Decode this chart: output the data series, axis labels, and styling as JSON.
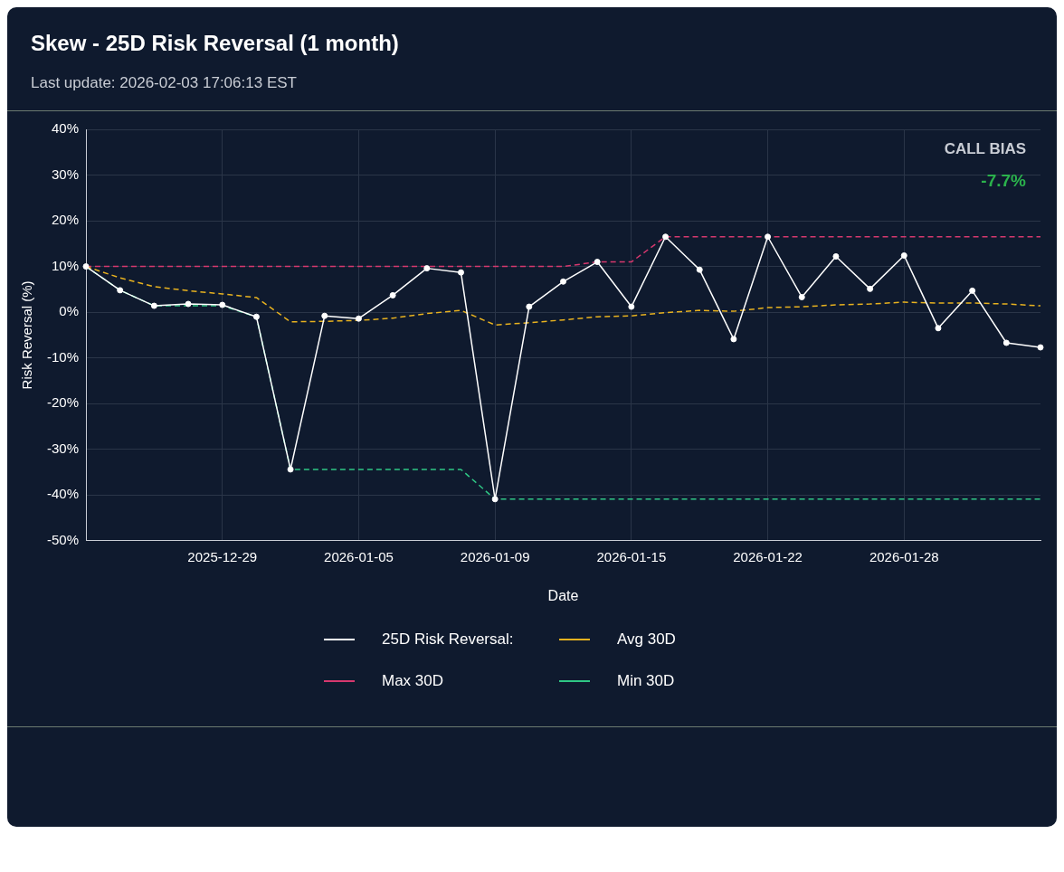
{
  "chart_data": {
    "type": "line",
    "title": "Skew - 25D Risk Reversal (1 month)",
    "subtitle": "Last update: 2026-02-03 17:06:13 EST",
    "xlabel": "Date",
    "ylabel": "Risk Reversal (%)",
    "categories": [
      null,
      null,
      null,
      null,
      "2025-12-29",
      null,
      null,
      null,
      "2026-01-05",
      null,
      null,
      null,
      "2026-01-09",
      null,
      null,
      null,
      "2026-01-15",
      null,
      null,
      null,
      "2026-01-22",
      null,
      null,
      null,
      "2026-01-28",
      null,
      null,
      null,
      null
    ],
    "series": [
      {
        "name": "25D Risk Reversal:",
        "color": "#ffffff",
        "marker": "circle",
        "line_style": "solid",
        "values": [
          10.0,
          4.8,
          1.4,
          1.8,
          1.6,
          -1.0,
          -34.4,
          -0.8,
          -1.4,
          3.7,
          9.6,
          8.7,
          -40.9,
          1.2,
          6.7,
          11.0,
          1.2,
          16.5,
          9.3,
          -5.9,
          16.5,
          3.3,
          12.2,
          5.1,
          12.4,
          -3.5,
          4.7,
          -6.7,
          -7.7
        ]
      },
      {
        "name": "Avg 30D",
        "color": "#e8b21f",
        "marker": "none",
        "line_style": "dashed",
        "values": [
          10.0,
          7.5,
          5.6,
          4.7,
          4.0,
          3.2,
          -2.1,
          -2.0,
          -1.8,
          -1.3,
          -0.3,
          0.4,
          -2.8,
          -2.3,
          -1.7,
          -1.0,
          -0.8,
          -0.1,
          0.4,
          0.2,
          1.0,
          1.2,
          1.6,
          1.8,
          2.2,
          2.0,
          2.0,
          1.8,
          1.4
        ]
      },
      {
        "name": "Max 30D",
        "color": "#d6386e",
        "marker": "none",
        "line_style": "dashed",
        "values": [
          10.0,
          10.0,
          10.0,
          10.0,
          10.0,
          10.0,
          10.0,
          10.0,
          10.0,
          10.0,
          10.0,
          10.0,
          10.0,
          10.0,
          10.0,
          11.0,
          11.0,
          16.5,
          16.5,
          16.5,
          16.5,
          16.5,
          16.5,
          16.5,
          16.5,
          16.5,
          16.5,
          16.5,
          16.5
        ]
      },
      {
        "name": "Min 30D",
        "color": "#2fc785",
        "marker": "none",
        "line_style": "dashed",
        "values": [
          10.0,
          4.8,
          1.4,
          1.4,
          1.4,
          -1.0,
          -34.4,
          -34.4,
          -34.4,
          -34.4,
          -34.4,
          -34.4,
          -40.9,
          -40.9,
          -40.9,
          -40.9,
          -40.9,
          -40.9,
          -40.9,
          -40.9,
          -40.9,
          -40.9,
          -40.9,
          -40.9,
          -40.9,
          -40.9,
          -40.9,
          -40.9,
          -40.9
        ]
      }
    ],
    "ylim": [
      -50,
      40
    ],
    "yticks": [
      {
        "value": -50,
        "label": "-50%"
      },
      {
        "value": -40,
        "label": "-40%"
      },
      {
        "value": -30,
        "label": "-30%"
      },
      {
        "value": -20,
        "label": "-20%"
      },
      {
        "value": -10,
        "label": "-10%"
      },
      {
        "value": 0,
        "label": "0%"
      },
      {
        "value": 10,
        "label": "10%"
      },
      {
        "value": 20,
        "label": "20%"
      },
      {
        "value": 30,
        "label": "30%"
      },
      {
        "value": 40,
        "label": "40%"
      }
    ],
    "grid": true,
    "legend": "bottom",
    "annotations": [
      "CALL BIAS",
      "-7.7%"
    ]
  }
}
